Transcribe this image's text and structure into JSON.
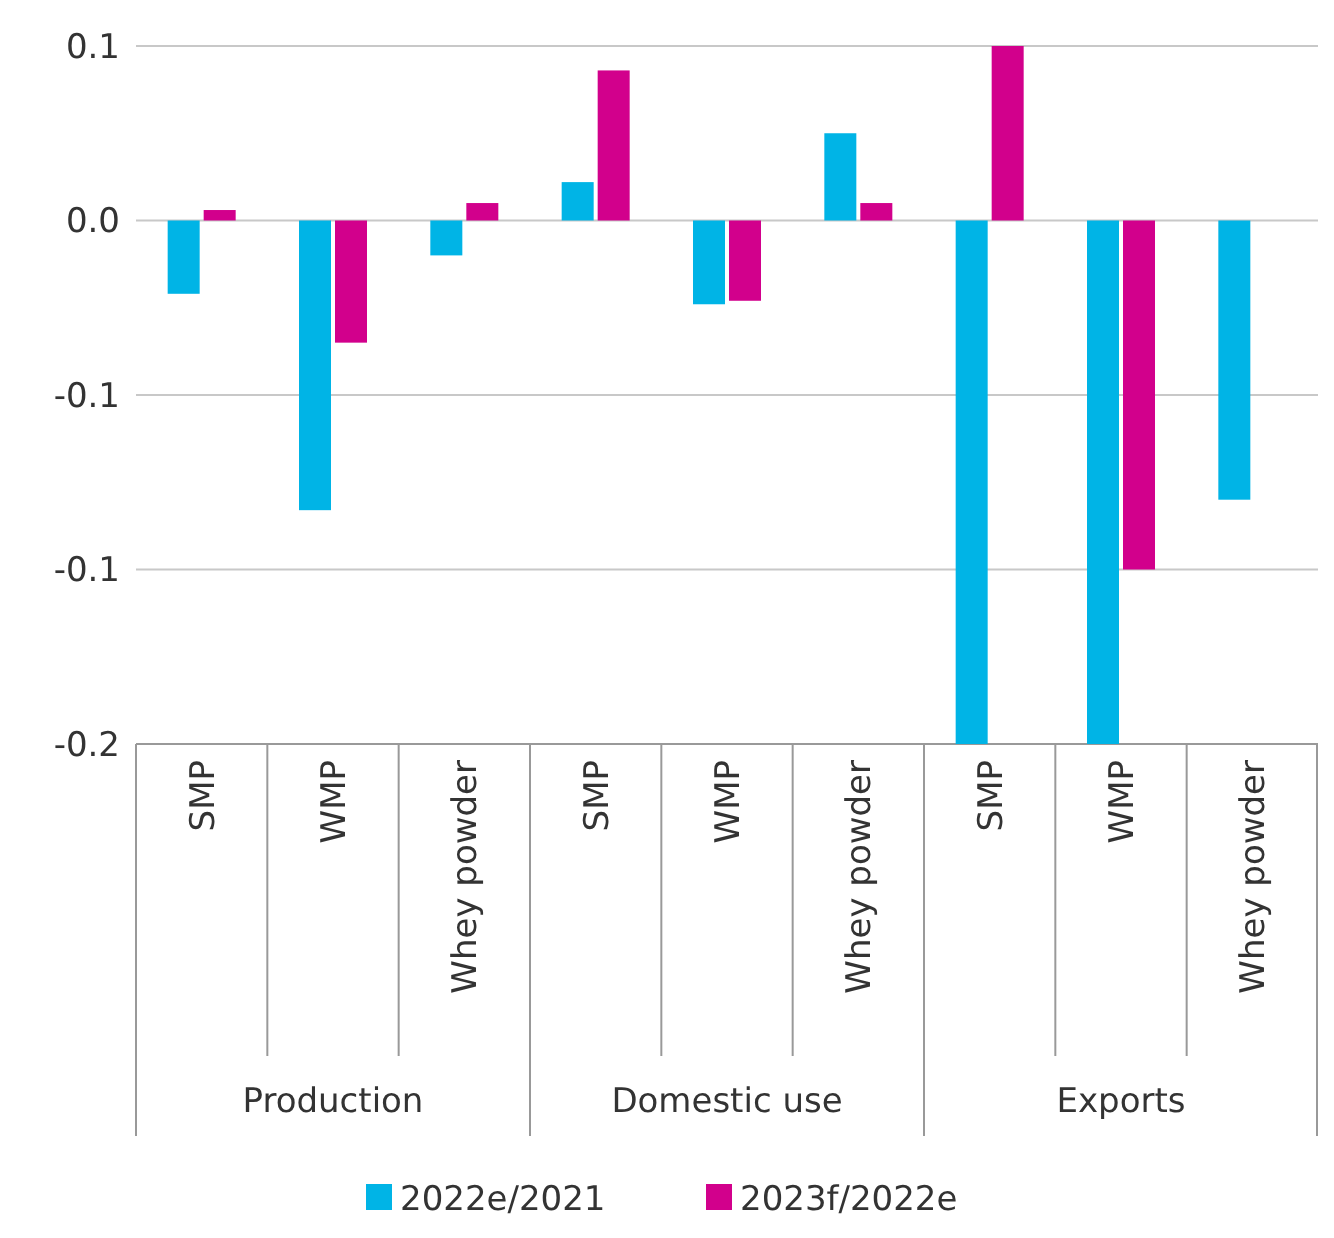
{
  "chart_data": {
    "type": "bar",
    "categories": [
      "SMP",
      "WMP",
      "Whey powder",
      "SMP",
      "WMP",
      "Whey powder",
      "SMP",
      "WMP",
      "Whey powder"
    ],
    "series": [
      {
        "name": "2022e/2021",
        "color": "#00b4e6",
        "values": [
          -0.021,
          -0.083,
          -0.01,
          0.011,
          -0.024,
          0.025,
          -0.15,
          -0.15,
          -0.08
        ]
      },
      {
        "name": "2023f/2022e",
        "color": "#d2008c",
        "values": [
          0.003,
          -0.035,
          0.005,
          0.043,
          -0.023,
          0.005,
          0.05,
          -0.1,
          null
        ]
      }
    ],
    "ylim": [
      -0.15,
      0.05
    ],
    "yticks": [
      {
        "value": 0.05,
        "label": "0.1"
      },
      {
        "value": 0,
        "label": "0.0"
      },
      {
        "value": -0.05,
        "label": "-0.1"
      },
      {
        "value": -0.1,
        "label": "-0.1"
      },
      {
        "value": -0.15,
        "label": "-0.2"
      }
    ],
    "annotations": [
      "Production",
      "Domestic use",
      "Exports"
    ],
    "grid": "y",
    "legend": "bottom"
  }
}
